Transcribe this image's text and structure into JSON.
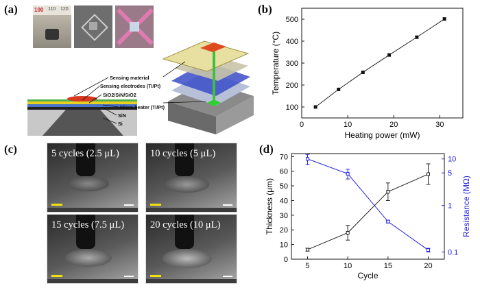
{
  "panels": {
    "a": "(a)",
    "b": "(b)",
    "c": "(c)",
    "d": "(d)"
  },
  "diagram_a": {
    "layers": [
      "Sensing material",
      "Sensing electrodes (Ti/Pt)",
      "SiO2/SiN/SiO2",
      "Micro heater (Ti/Pt)",
      "SiN",
      "Si"
    ],
    "ruler": [
      "100",
      "110",
      "120"
    ]
  },
  "photos_c": [
    {
      "label": "5 cycles (2.5 μL)"
    },
    {
      "label": "10 cycles (5 μL)"
    },
    {
      "label": "15 cycles (7.5 μL)"
    },
    {
      "label": "20 cycles (10 μL)"
    }
  ],
  "colors": {
    "black_series": "#222222",
    "blue_series": "#2020e0"
  },
  "chart_data": [
    {
      "type": "line",
      "xlabel": "Heating power (mW)",
      "ylabel": "Temperature (°C)",
      "xlim": [
        0,
        35
      ],
      "ylim": [
        50,
        550
      ],
      "xticks": [
        0,
        10,
        20,
        30
      ],
      "yticks": [
        100,
        200,
        300,
        400,
        500
      ],
      "series": [
        {
          "x": [
            3,
            8,
            13.3,
            19,
            25,
            31
          ],
          "y": [
            100,
            180,
            258,
            337,
            418,
            501
          ]
        }
      ]
    },
    {
      "type": "line",
      "xlabel": "Cycle",
      "ylabel": "Thickness (μm)",
      "y2label": "Resistance (MΩ)",
      "xlim": [
        3,
        22
      ],
      "ylim": [
        0,
        72
      ],
      "xticks": [
        5,
        10,
        15,
        20
      ],
      "yticks": [
        0,
        10,
        20,
        30,
        40,
        50,
        60,
        70
      ],
      "y2scale": "log",
      "y2lim": [
        0.07,
        13
      ],
      "y2ticks": [
        0.1,
        1,
        5,
        10
      ],
      "series": [
        {
          "axis": "left",
          "x": [
            5,
            10,
            15,
            20
          ],
          "y": [
            6.5,
            18,
            46,
            58
          ],
          "err": [
            1,
            5,
            6,
            7
          ]
        },
        {
          "axis": "right",
          "x": [
            5,
            10,
            15,
            20
          ],
          "y": [
            10,
            4.8,
            0.45,
            0.11
          ],
          "err_low": [
            7.6,
            3.7,
            0.42,
            0.1
          ],
          "err_high": [
            12.5,
            6,
            0.48,
            0.12
          ]
        }
      ]
    }
  ]
}
